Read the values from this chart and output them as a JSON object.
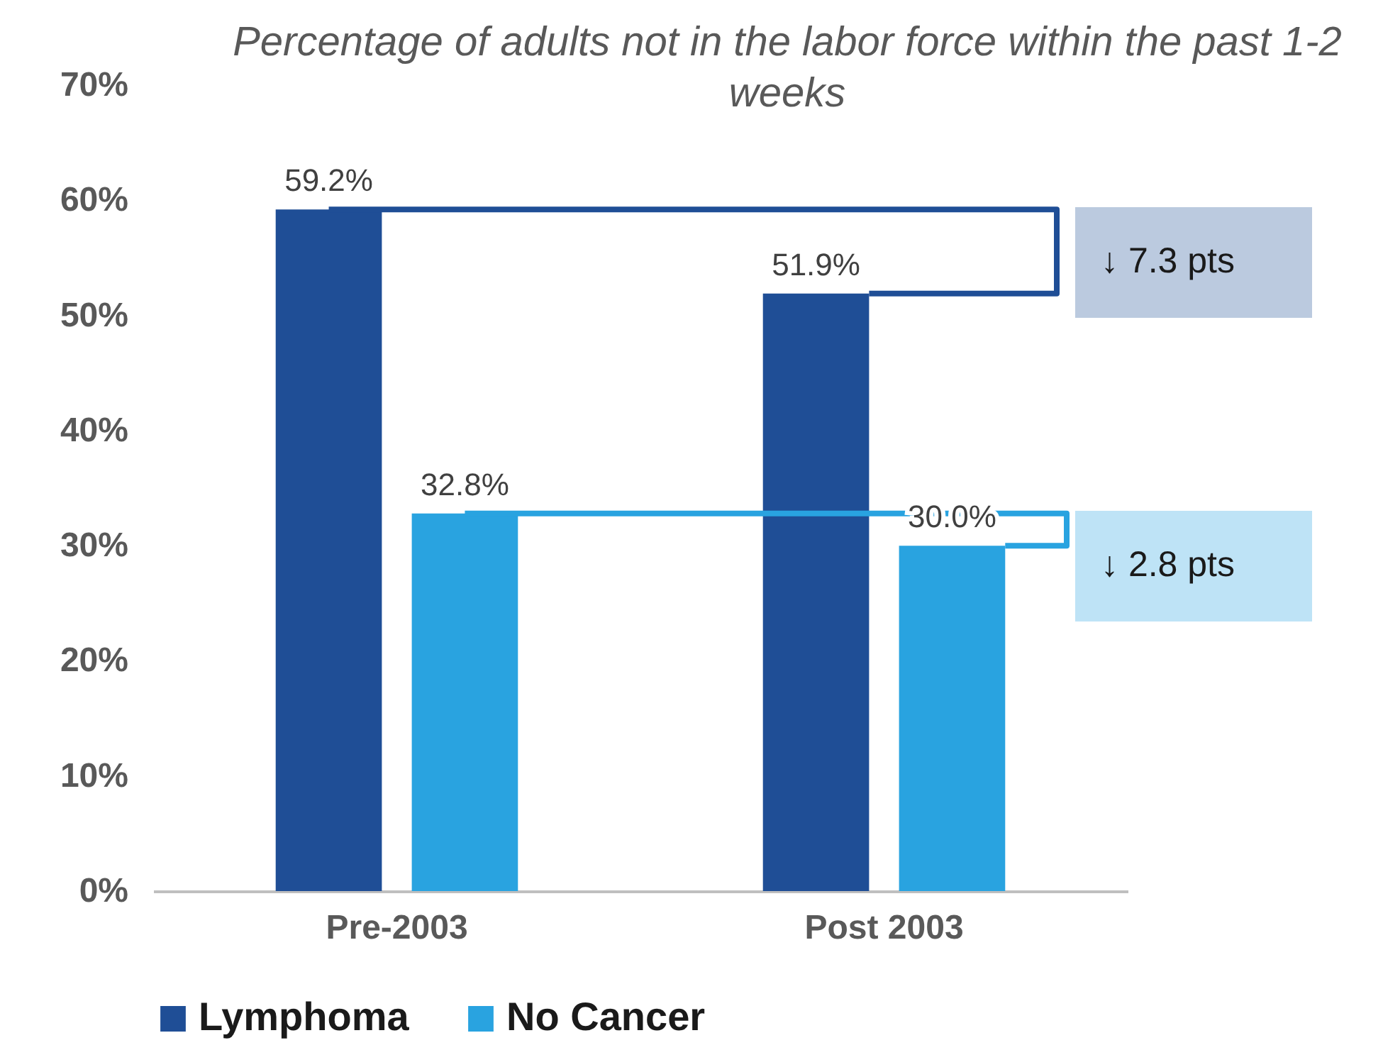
{
  "chart_data": {
    "type": "bar",
    "title": "Percentage of adults not in the labor force within the past 1-2 weeks",
    "categories": [
      "Pre-2003",
      "Post 2003"
    ],
    "series": [
      {
        "name": "Lymphoma",
        "color": "#1f4e96",
        "values": [
          59.2,
          51.9
        ],
        "value_labels": [
          "59.2%",
          "51.9%"
        ]
      },
      {
        "name": "No Cancer",
        "color": "#29a3e0",
        "values": [
          32.8,
          30.0
        ],
        "value_labels": [
          "32.8%",
          "30.0%"
        ]
      }
    ],
    "ylim": [
      0,
      70
    ],
    "yticks": [
      {
        "value": 0,
        "label": "0%"
      },
      {
        "value": 10,
        "label": "10%"
      },
      {
        "value": 20,
        "label": "20%"
      },
      {
        "value": 30,
        "label": "30%"
      },
      {
        "value": 40,
        "label": "40%"
      },
      {
        "value": 50,
        "label": "50%"
      },
      {
        "value": 60,
        "label": "60%"
      },
      {
        "value": 70,
        "label": "70%"
      }
    ],
    "grid": false,
    "legend": "bottom",
    "annotations": [
      "↓ 7.3 pts",
      "↓ 2.8 pts"
    ]
  }
}
